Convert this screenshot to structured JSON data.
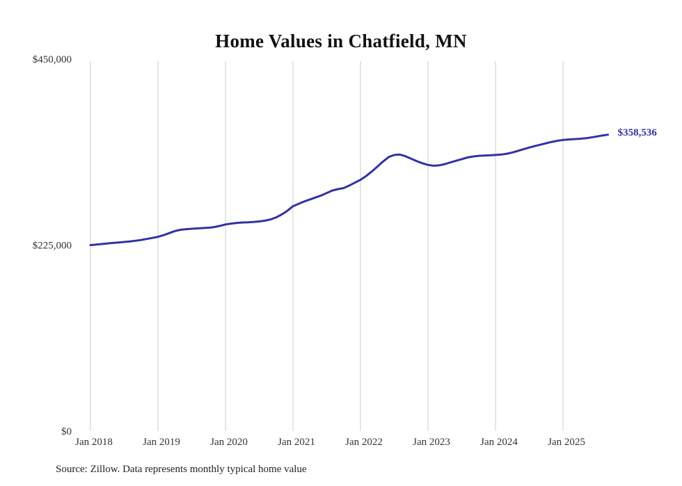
{
  "chart_data": {
    "type": "line",
    "title": "Home Values in Chatfield, MN",
    "source": "Source: Zillow. Data represents monthly typical home value",
    "end_label": "$358,536",
    "latest_value": 358536,
    "line_color": "#3331a5",
    "grid_color": "#cccccc",
    "frequency": "monthly",
    "x_start": "Jan 2018",
    "x_end": "Sep 2025",
    "x_ticks": [
      "Jan 2018",
      "Jan 2019",
      "Jan 2020",
      "Jan 2021",
      "Jan 2022",
      "Jan 2023",
      "Jan 2024",
      "Jan 2025"
    ],
    "y_axis": {
      "max": 450000,
      "min": 0,
      "ticks": [
        {
          "value": 0,
          "label": "$0"
        },
        {
          "value": 225000,
          "label": "$225,000"
        },
        {
          "value": 450000,
          "label": "$450,000"
        }
      ]
    },
    "legend": "none",
    "grid": "vertical-only",
    "values": [
      225000,
      225600,
      226300,
      227000,
      227600,
      228200,
      228800,
      229400,
      230200,
      231200,
      232400,
      233700,
      235000,
      237000,
      239500,
      242000,
      243500,
      244300,
      244800,
      245200,
      245600,
      246000,
      246800,
      248200,
      250000,
      251000,
      251800,
      252300,
      252600,
      253000,
      253600,
      254500,
      256000,
      258500,
      262000,
      266500,
      272000,
      275000,
      277800,
      280200,
      282500,
      285000,
      288000,
      291000,
      292700,
      294000,
      297000,
      300500,
      304000,
      308500,
      314000,
      320000,
      326000,
      331500,
      334000,
      334500,
      332500,
      329500,
      326500,
      324000,
      322000,
      321000,
      321500,
      323000,
      325000,
      327000,
      329000,
      331000,
      332200,
      333000,
      333300,
      333600,
      334000,
      334500,
      335500,
      337000,
      339000,
      341000,
      343000,
      344800,
      346500,
      348200,
      349800,
      351200,
      352200,
      352800,
      353200,
      353600,
      354200,
      355200,
      356400,
      357600,
      358536
    ]
  }
}
